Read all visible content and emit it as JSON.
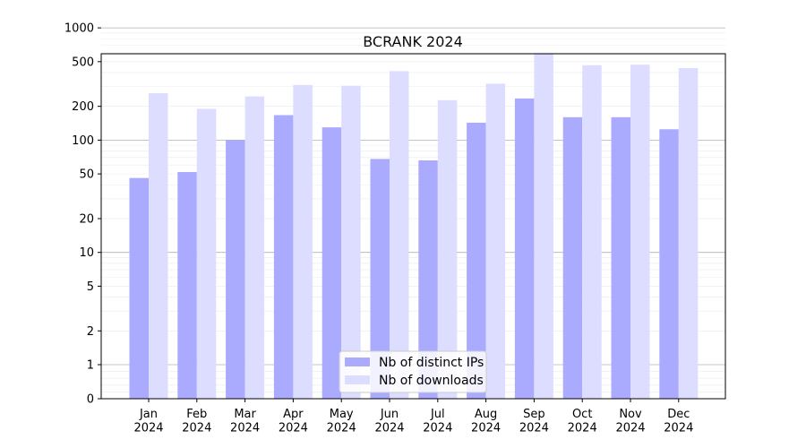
{
  "chart_data": {
    "type": "bar",
    "title": "BCRANK 2024",
    "xlabel": "",
    "ylabel": "",
    "yscale": "symlog",
    "ylim": [
      0,
      1000
    ],
    "yticks": [
      0,
      1,
      2,
      5,
      10,
      20,
      50,
      100,
      200,
      500,
      1000
    ],
    "categories": [
      "Jan\n2024",
      "Feb\n2024",
      "Mar\n2024",
      "Apr\n2024",
      "May\n2024",
      "Jun\n2024",
      "Jul\n2024",
      "Aug\n2024",
      "Sep\n2024",
      "Oct\n2024",
      "Nov\n2024",
      "Dec\n2024"
    ],
    "series": [
      {
        "name": "Nb of distinct IPs",
        "color": "#aaaaff",
        "values": [
          46,
          52,
          100,
          167,
          130,
          68,
          66,
          143,
          235,
          160,
          160,
          125
        ]
      },
      {
        "name": "Nb of downloads",
        "color": "#ddddff",
        "values": [
          262,
          190,
          245,
          310,
          305,
          412,
          227,
          318,
          595,
          465,
          470,
          438
        ]
      }
    ],
    "grid": true,
    "legend_position": "bottom-center"
  }
}
